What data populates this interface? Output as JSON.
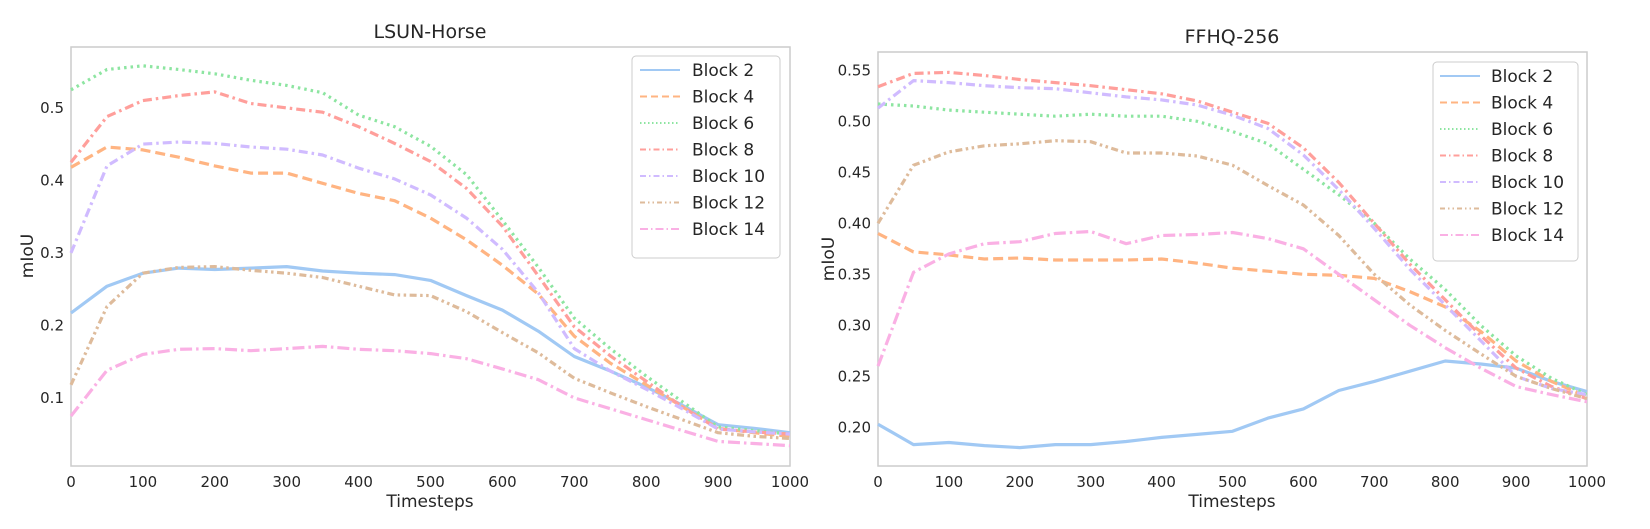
{
  "chart_data": [
    {
      "type": "line",
      "title": "LSUN-Horse",
      "xlabel": "Timesteps",
      "ylabel": "mIoU",
      "xlim": [
        0,
        1000
      ],
      "ylim": [
        0.006,
        0.584
      ],
      "xticks": [
        0,
        100,
        200,
        300,
        400,
        500,
        600,
        700,
        800,
        900,
        1000
      ],
      "xtick_labels": [
        "0",
        "100",
        "200",
        "300",
        "400",
        "500",
        "600",
        "700",
        "800",
        "900",
        "1000"
      ],
      "yticks": [
        0.1,
        0.2,
        0.3,
        0.4,
        0.5
      ],
      "ytick_labels": [
        "0.1",
        "0.2",
        "0.3",
        "0.4",
        "0.5"
      ],
      "grid": false,
      "legend_position": "top-right",
      "x": [
        0,
        50,
        100,
        150,
        200,
        250,
        300,
        350,
        400,
        450,
        500,
        550,
        600,
        650,
        700,
        750,
        800,
        850,
        900,
        950,
        1000
      ],
      "series": [
        {
          "name": "Block 2",
          "color": "#a1c9f4",
          "dash": "solid",
          "values": [
            0.217,
            0.254,
            0.272,
            0.279,
            0.277,
            0.279,
            0.281,
            0.275,
            0.272,
            0.27,
            0.262,
            0.241,
            0.221,
            0.192,
            0.157,
            0.137,
            0.115,
            0.09,
            0.063,
            0.058,
            0.052
          ]
        },
        {
          "name": "Block 4",
          "color": "#ffb482",
          "dash": "dashed",
          "values": [
            0.418,
            0.446,
            0.442,
            0.432,
            0.42,
            0.41,
            0.41,
            0.396,
            0.382,
            0.372,
            0.348,
            0.318,
            0.283,
            0.243,
            0.185,
            0.148,
            0.118,
            0.088,
            0.058,
            0.052,
            0.047
          ]
        },
        {
          "name": "Block 6",
          "color": "#8de5a1",
          "dash": "dotted",
          "values": [
            0.525,
            0.553,
            0.558,
            0.553,
            0.547,
            0.538,
            0.531,
            0.521,
            0.49,
            0.474,
            0.447,
            0.408,
            0.345,
            0.28,
            0.21,
            0.168,
            0.13,
            0.095,
            0.06,
            0.055,
            0.05
          ]
        },
        {
          "name": "Block 8",
          "color": "#ff9f9b",
          "dash": "dashdot",
          "values": [
            0.425,
            0.488,
            0.51,
            0.517,
            0.522,
            0.506,
            0.5,
            0.494,
            0.474,
            0.451,
            0.426,
            0.389,
            0.337,
            0.268,
            0.198,
            0.158,
            0.123,
            0.088,
            0.057,
            0.053,
            0.05
          ]
        },
        {
          "name": "Block 10",
          "color": "#d0bbff",
          "dash": "dashdot",
          "values": [
            0.3,
            0.42,
            0.45,
            0.453,
            0.451,
            0.446,
            0.443,
            0.435,
            0.417,
            0.402,
            0.38,
            0.348,
            0.305,
            0.245,
            0.168,
            0.137,
            0.112,
            0.085,
            0.057,
            0.053,
            0.05
          ]
        },
        {
          "name": "Block 12",
          "color": "#debb9b",
          "dash": "dashdotdot",
          "values": [
            0.118,
            0.226,
            0.272,
            0.28,
            0.281,
            0.276,
            0.272,
            0.266,
            0.254,
            0.242,
            0.241,
            0.219,
            0.19,
            0.162,
            0.127,
            0.107,
            0.088,
            0.07,
            0.052,
            0.047,
            0.044
          ]
        },
        {
          "name": "Block 14",
          "color": "#fab0e4",
          "dash": "longdashdot",
          "values": [
            0.075,
            0.138,
            0.16,
            0.167,
            0.168,
            0.165,
            0.168,
            0.171,
            0.167,
            0.165,
            0.161,
            0.154,
            0.14,
            0.125,
            0.1,
            0.085,
            0.07,
            0.055,
            0.04,
            0.037,
            0.034
          ]
        }
      ]
    },
    {
      "type": "line",
      "title": "FFHQ-256",
      "xlabel": "Timesteps",
      "ylabel": "mIoU",
      "xlim": [
        0,
        1000
      ],
      "ylim": [
        0.162,
        0.568
      ],
      "xticks": [
        0,
        100,
        200,
        300,
        400,
        500,
        600,
        700,
        800,
        900,
        1000
      ],
      "xtick_labels": [
        "0",
        "100",
        "200",
        "300",
        "400",
        "500",
        "600",
        "700",
        "800",
        "900",
        "1000"
      ],
      "yticks": [
        0.2,
        0.25,
        0.3,
        0.35,
        0.4,
        0.45,
        0.5,
        0.55
      ],
      "ytick_labels": [
        "0.20",
        "0.25",
        "0.30",
        "0.35",
        "0.40",
        "0.45",
        "0.50",
        "0.55"
      ],
      "grid": false,
      "legend_position": "top-right",
      "x": [
        0,
        50,
        100,
        150,
        200,
        250,
        300,
        350,
        400,
        450,
        500,
        550,
        600,
        650,
        700,
        750,
        800,
        850,
        900,
        950,
        1000
      ],
      "series": [
        {
          "name": "Block 2",
          "color": "#a1c9f4",
          "dash": "solid",
          "values": [
            0.203,
            0.183,
            0.185,
            0.182,
            0.18,
            0.183,
            0.183,
            0.186,
            0.19,
            0.193,
            0.196,
            0.209,
            0.218,
            0.236,
            0.245,
            0.255,
            0.265,
            0.262,
            0.258,
            0.245,
            0.235
          ]
        },
        {
          "name": "Block 4",
          "color": "#ffb482",
          "dash": "dashed",
          "values": [
            0.39,
            0.372,
            0.369,
            0.365,
            0.366,
            0.364,
            0.364,
            0.364,
            0.365,
            0.361,
            0.356,
            0.353,
            0.35,
            0.349,
            0.346,
            0.333,
            0.318,
            0.294,
            0.265,
            0.245,
            0.23
          ]
        },
        {
          "name": "Block 6",
          "color": "#8de5a1",
          "dash": "dotted",
          "values": [
            0.517,
            0.515,
            0.511,
            0.509,
            0.507,
            0.505,
            0.507,
            0.505,
            0.505,
            0.5,
            0.49,
            0.478,
            0.453,
            0.428,
            0.4,
            0.365,
            0.335,
            0.3,
            0.27,
            0.248,
            0.232
          ]
        },
        {
          "name": "Block 8",
          "color": "#ff9f9b",
          "dash": "dashdot",
          "values": [
            0.534,
            0.547,
            0.548,
            0.545,
            0.541,
            0.538,
            0.535,
            0.531,
            0.527,
            0.52,
            0.509,
            0.498,
            0.474,
            0.44,
            0.4,
            0.36,
            0.325,
            0.29,
            0.258,
            0.24,
            0.228
          ]
        },
        {
          "name": "Block 10",
          "color": "#d0bbff",
          "dash": "dashdot",
          "values": [
            0.513,
            0.54,
            0.538,
            0.535,
            0.533,
            0.532,
            0.528,
            0.524,
            0.521,
            0.516,
            0.506,
            0.493,
            0.467,
            0.433,
            0.395,
            0.355,
            0.32,
            0.285,
            0.25,
            0.238,
            0.232
          ]
        },
        {
          "name": "Block 12",
          "color": "#debb9b",
          "dash": "dashdotdot",
          "values": [
            0.4,
            0.457,
            0.47,
            0.476,
            0.478,
            0.481,
            0.48,
            0.469,
            0.469,
            0.466,
            0.457,
            0.437,
            0.418,
            0.388,
            0.35,
            0.32,
            0.295,
            0.272,
            0.25,
            0.238,
            0.228
          ]
        },
        {
          "name": "Block 14",
          "color": "#fab0e4",
          "dash": "longdashdot",
          "values": [
            0.26,
            0.352,
            0.37,
            0.38,
            0.382,
            0.39,
            0.392,
            0.38,
            0.388,
            0.389,
            0.391,
            0.385,
            0.375,
            0.35,
            0.325,
            0.3,
            0.278,
            0.258,
            0.24,
            0.232,
            0.225
          ]
        }
      ]
    }
  ]
}
